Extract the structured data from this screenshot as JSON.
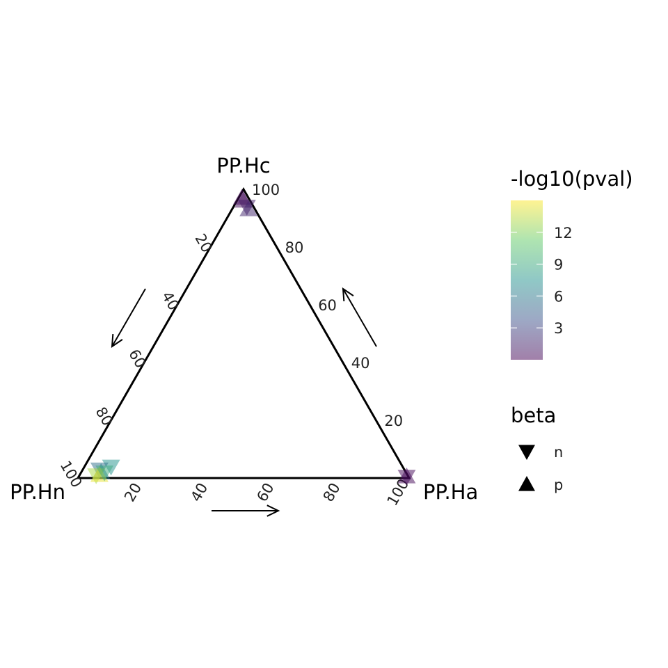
{
  "chart_data": {
    "type": "scatter",
    "kind": "ternary",
    "axes": {
      "top": "PP.Hc",
      "left": "PP.Hn",
      "right": "PP.Ha"
    },
    "tick_labels": [
      "20",
      "40",
      "60",
      "80",
      "100"
    ],
    "grid": false,
    "points": [
      {
        "PP.Ha": 2,
        "PP.Hc": 96,
        "PP.Hn": 2,
        "beta": "p",
        "neglog10pval": 0.5
      },
      {
        "PP.Ha": 1,
        "PP.Hc": 97,
        "PP.Hn": 2,
        "beta": "p",
        "neglog10pval": 0.4
      },
      {
        "PP.Ha": 4,
        "PP.Hc": 94,
        "PP.Hn": 2,
        "beta": "n",
        "neglog10pval": 1.2
      },
      {
        "PP.Ha": 5,
        "PP.Hc": 93,
        "PP.Hn": 2,
        "beta": "p",
        "neglog10pval": 1.6
      },
      {
        "PP.Ha": 99,
        "PP.Hc": 0.5,
        "PP.Hn": 0.5,
        "beta": "n",
        "neglog10pval": 0.3
      },
      {
        "PP.Ha": 99,
        "PP.Hc": 0.5,
        "PP.Hn": 0.5,
        "beta": "p",
        "neglog10pval": 0.3
      },
      {
        "PP.Ha": 8,
        "PP.Hc": 4,
        "PP.Hn": 88,
        "beta": "n",
        "neglog10pval": 7.5
      },
      {
        "PP.Ha": 5,
        "PP.Hc": 3,
        "PP.Hn": 92,
        "beta": "n",
        "neglog10pval": 5.5
      },
      {
        "PP.Ha": 6,
        "PP.Hc": 2,
        "PP.Hn": 92,
        "beta": "p",
        "neglog10pval": 6.5
      },
      {
        "PP.Ha": 5,
        "PP.Hc": 1,
        "PP.Hn": 94,
        "beta": "n",
        "neglog10pval": 13
      },
      {
        "PP.Ha": 6,
        "PP.Hc": 1,
        "PP.Hn": 93,
        "beta": "p",
        "neglog10pval": 14.5
      },
      {
        "PP.Ha": 7,
        "PP.Hc": 2,
        "PP.Hn": 91,
        "beta": "n",
        "neglog10pval": 9
      }
    ],
    "color_scale": {
      "title": "-log10(pval)",
      "ticks": [
        3,
        6,
        9,
        12
      ],
      "range": [
        0,
        15
      ],
      "colors": [
        "#440154",
        "#3b528b",
        "#21918c",
        "#5ec962",
        "#fde725"
      ],
      "alpha": 0.5
    },
    "shape_legend": {
      "title": "beta",
      "entries": [
        {
          "label": "n",
          "shape": "triangle-down"
        },
        {
          "label": "p",
          "shape": "triangle-up"
        }
      ]
    },
    "legend_position": "right"
  }
}
